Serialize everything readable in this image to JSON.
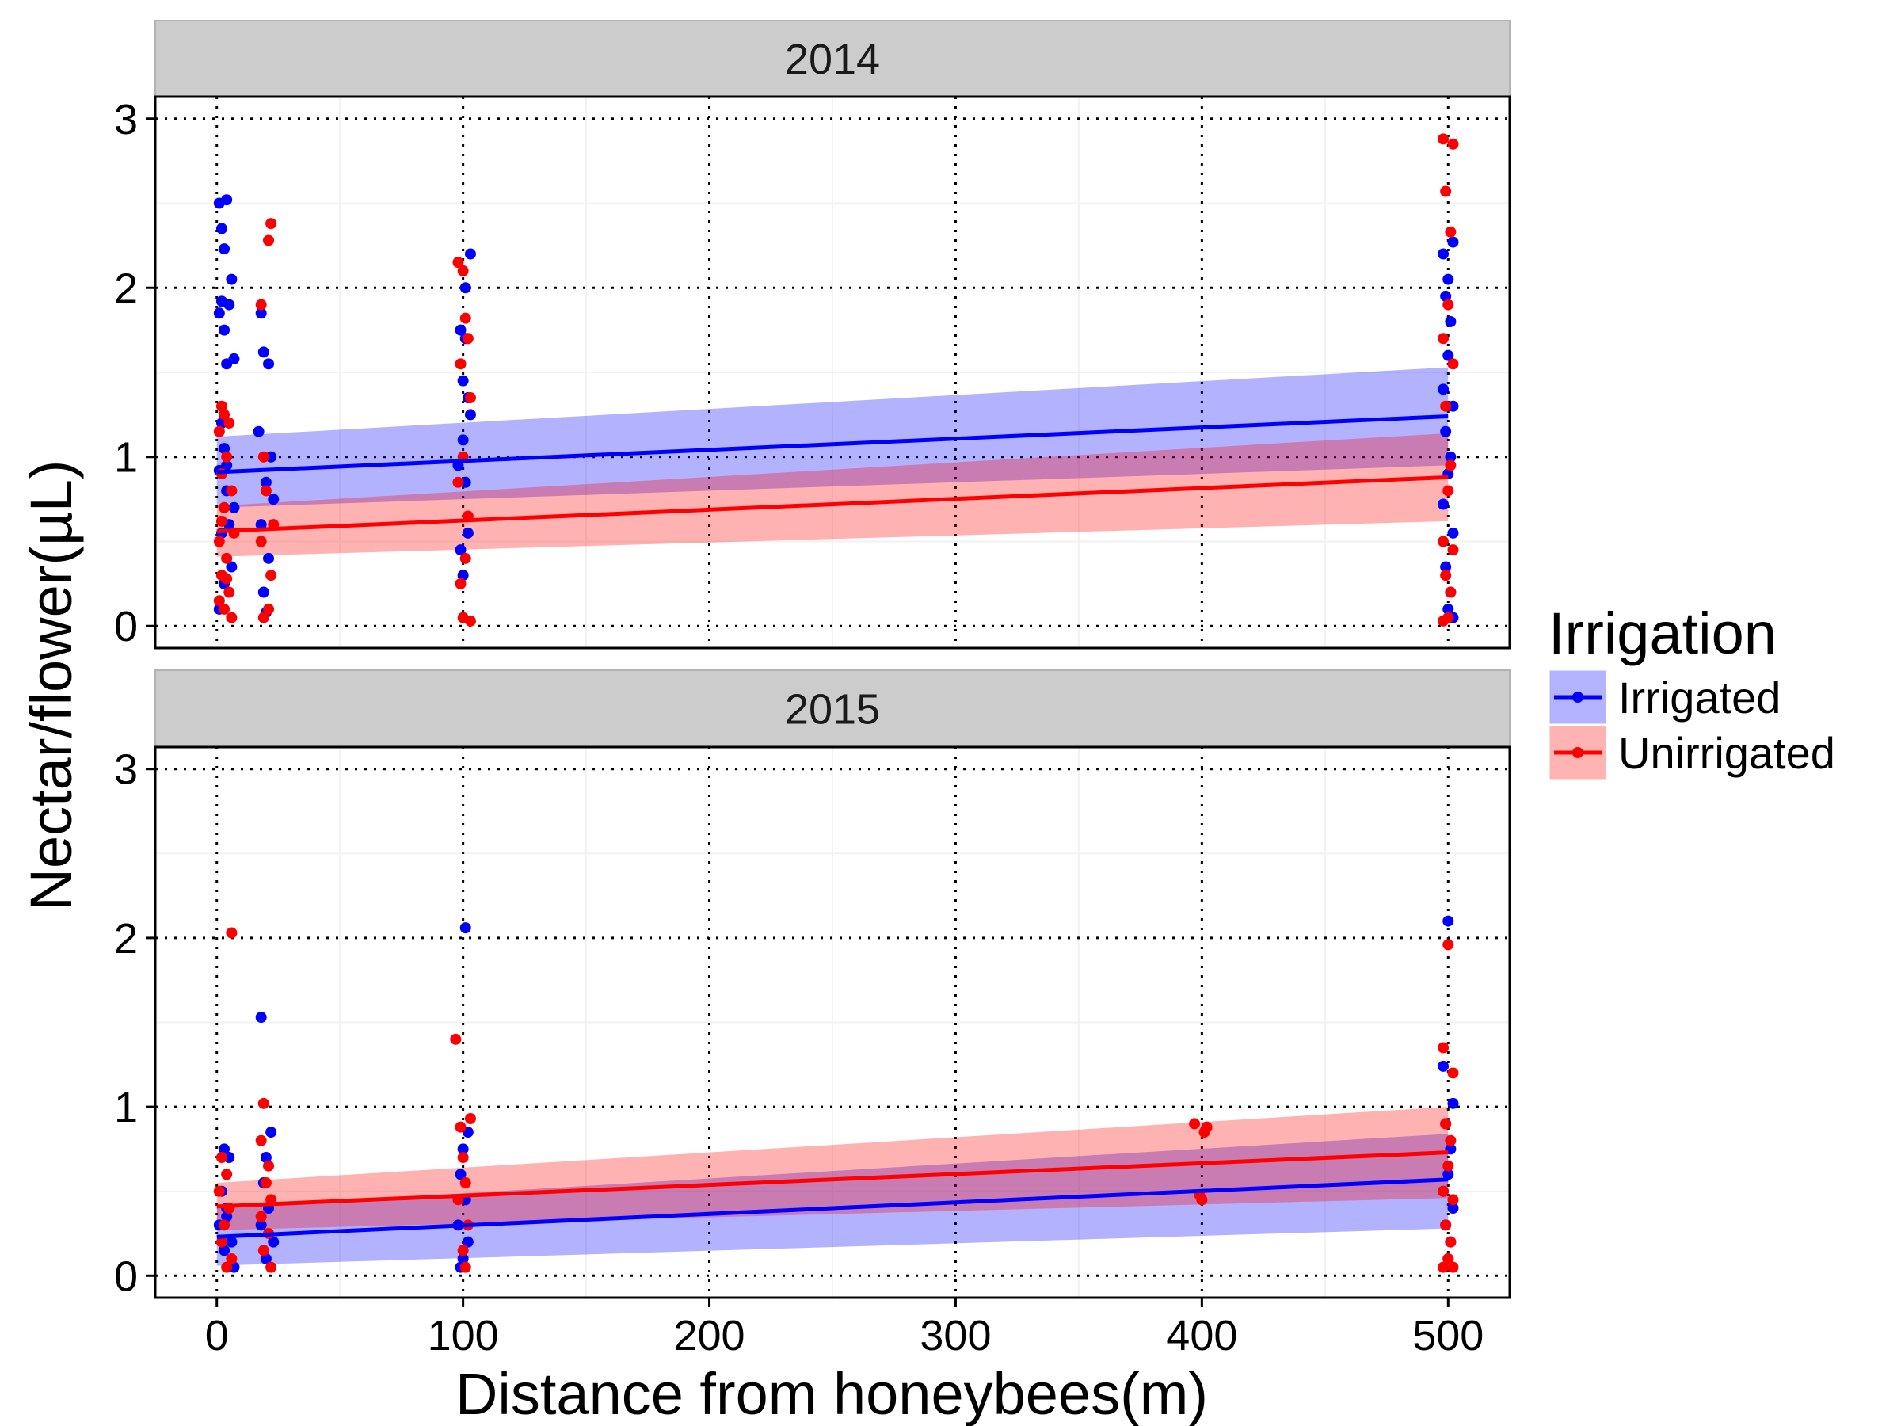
{
  "chart_data": {
    "type": "scatter",
    "facet_variable": "year",
    "xlabel": "Distance from honeybees(m)",
    "ylabel": "Nectar/flower(µL)",
    "xlim": [
      -25,
      525
    ],
    "ylim": [
      -0.13,
      3.13
    ],
    "x_ticks": [
      0,
      100,
      200,
      300,
      400,
      500
    ],
    "y_ticks": [
      0,
      1,
      2,
      3
    ],
    "grid": true,
    "legend": {
      "title": "Irrigation",
      "placement": "right",
      "entries": [
        {
          "label": "Irrigated",
          "color": "#0000ff",
          "fill": "#b3b3ff"
        },
        {
          "label": "Unirrigated",
          "color": "#ff0000",
          "fill": "#ffb3b3"
        }
      ]
    },
    "panels": [
      {
        "label": "2014",
        "series": [
          {
            "name": "Irrigated",
            "trend": {
              "x": [
                0,
                500
              ],
              "y": [
                0.91,
                1.24
              ],
              "ci_lower": [
                0.7,
                0.95
              ],
              "ci_upper": [
                1.12,
                1.53
              ]
            },
            "points": [
              [
                1,
                2.5
              ],
              [
                2,
                2.35
              ],
              [
                4,
                2.52
              ],
              [
                3,
                2.23
              ],
              [
                2,
                1.92
              ],
              [
                5,
                1.9
              ],
              [
                1,
                1.85
              ],
              [
                6,
                2.05
              ],
              [
                3,
                1.75
              ],
              [
                4,
                1.55
              ],
              [
                7,
                1.58
              ],
              [
                2,
                1.2
              ],
              [
                3,
                1.05
              ],
              [
                1,
                0.92
              ],
              [
                4,
                0.8
              ],
              [
                5,
                0.6
              ],
              [
                2,
                0.55
              ],
              [
                6,
                0.35
              ],
              [
                3,
                0.25
              ],
              [
                1,
                0.1
              ],
              [
                7,
                0.7
              ],
              [
                4,
                0.95
              ],
              [
                18,
                1.85
              ],
              [
                19,
                1.62
              ],
              [
                21,
                1.55
              ],
              [
                17,
                1.15
              ],
              [
                22,
                1.0
              ],
              [
                20,
                0.85
              ],
              [
                18,
                0.6
              ],
              [
                21,
                0.4
              ],
              [
                19,
                0.2
              ],
              [
                23,
                0.75
              ],
              [
                20,
                0.08
              ],
              [
                99,
                1.75
              ],
              [
                101,
                1.7
              ],
              [
                100,
                1.45
              ],
              [
                102,
                1.35
              ],
              [
                103,
                1.25
              ],
              [
                100,
                1.1
              ],
              [
                98,
                0.95
              ],
              [
                101,
                0.85
              ],
              [
                102,
                0.55
              ],
              [
                99,
                0.45
              ],
              [
                103,
                2.2
              ],
              [
                101,
                2.0
              ],
              [
                100,
                0.3
              ],
              [
                498,
                2.2
              ],
              [
                500,
                2.05
              ],
              [
                502,
                2.27
              ],
              [
                499,
                1.95
              ],
              [
                501,
                1.8
              ],
              [
                500,
                1.6
              ],
              [
                498,
                1.4
              ],
              [
                502,
                1.3
              ],
              [
                499,
                1.15
              ],
              [
                501,
                1.0
              ],
              [
                500,
                0.9
              ],
              [
                498,
                0.72
              ],
              [
                502,
                0.55
              ],
              [
                499,
                0.35
              ],
              [
                501,
                0.2
              ],
              [
                500,
                0.1
              ],
              [
                502,
                0.05
              ]
            ]
          },
          {
            "name": "Unirrigated",
            "trend": {
              "x": [
                0,
                500
              ],
              "y": [
                0.56,
                0.88
              ],
              "ci_lower": [
                0.41,
                0.62
              ],
              "ci_upper": [
                0.71,
                1.14
              ]
            },
            "points": [
              [
                2,
                1.3
              ],
              [
                3,
                1.25
              ],
              [
                1,
                1.15
              ],
              [
                5,
                1.2
              ],
              [
                4,
                1.0
              ],
              [
                2,
                0.9
              ],
              [
                6,
                0.8
              ],
              [
                3,
                0.7
              ],
              [
                1,
                0.5
              ],
              [
                4,
                0.4
              ],
              [
                2,
                0.3
              ],
              [
                5,
                0.2
              ],
              [
                3,
                0.1
              ],
              [
                6,
                0.05
              ],
              [
                1,
                0.15
              ],
              [
                7,
                0.55
              ],
              [
                2,
                0.62
              ],
              [
                4,
                0.28
              ],
              [
                18,
                1.9
              ],
              [
                21,
                2.28
              ],
              [
                22,
                2.38
              ],
              [
                19,
                1.0
              ],
              [
                20,
                0.8
              ],
              [
                18,
                0.5
              ],
              [
                22,
                0.3
              ],
              [
                21,
                0.1
              ],
              [
                19,
                0.05
              ],
              [
                23,
                0.6
              ],
              [
                98,
                2.15
              ],
              [
                100,
                2.1
              ],
              [
                101,
                1.82
              ],
              [
                102,
                1.7
              ],
              [
                99,
                1.55
              ],
              [
                103,
                1.35
              ],
              [
                100,
                1.0
              ],
              [
                98,
                0.85
              ],
              [
                102,
                0.65
              ],
              [
                101,
                0.4
              ],
              [
                99,
                0.25
              ],
              [
                100,
                0.05
              ],
              [
                103,
                0.03
              ],
              [
                498,
                2.88
              ],
              [
                502,
                2.85
              ],
              [
                499,
                2.57
              ],
              [
                501,
                2.33
              ],
              [
                500,
                1.9
              ],
              [
                498,
                1.7
              ],
              [
                502,
                1.55
              ],
              [
                499,
                1.3
              ],
              [
                501,
                0.95
              ],
              [
                500,
                0.8
              ],
              [
                498,
                0.5
              ],
              [
                502,
                0.45
              ],
              [
                499,
                0.3
              ],
              [
                501,
                0.2
              ],
              [
                500,
                0.05
              ],
              [
                498,
                0.03
              ]
            ]
          }
        ]
      },
      {
        "label": "2015",
        "series": [
          {
            "name": "Irrigated",
            "trend": {
              "x": [
                0,
                500
              ],
              "y": [
                0.23,
                0.57
              ],
              "ci_lower": [
                0.06,
                0.28
              ],
              "ci_upper": [
                0.4,
                0.84
              ]
            },
            "points": [
              [
                3,
                0.75
              ],
              [
                5,
                0.7
              ],
              [
                2,
                0.5
              ],
              [
                4,
                0.4
              ],
              [
                1,
                0.3
              ],
              [
                6,
                0.2
              ],
              [
                3,
                0.15
              ],
              [
                7,
                0.05
              ],
              [
                4,
                0.35
              ],
              [
                18,
                1.53
              ],
              [
                22,
                0.85
              ],
              [
                20,
                0.7
              ],
              [
                19,
                0.55
              ],
              [
                21,
                0.4
              ],
              [
                18,
                0.3
              ],
              [
                23,
                0.2
              ],
              [
                20,
                0.1
              ],
              [
                101,
                2.06
              ],
              [
                102,
                0.85
              ],
              [
                100,
                0.75
              ],
              [
                99,
                0.6
              ],
              [
                101,
                0.45
              ],
              [
                98,
                0.3
              ],
              [
                102,
                0.2
              ],
              [
                100,
                0.1
              ],
              [
                99,
                0.05
              ],
              [
                500,
                2.1
              ],
              [
                502,
                1.02
              ],
              [
                498,
                1.24
              ],
              [
                499,
                0.9
              ],
              [
                501,
                0.75
              ],
              [
                500,
                0.6
              ],
              [
                498,
                0.5
              ],
              [
                502,
                0.4
              ],
              [
                499,
                0.3
              ],
              [
                501,
                0.2
              ],
              [
                500,
                0.1
              ]
            ]
          },
          {
            "name": "Unirrigated",
            "trend": {
              "x": [
                0,
                500
              ],
              "y": [
                0.41,
                0.73
              ],
              "ci_lower": [
                0.27,
                0.46
              ],
              "ci_upper": [
                0.55,
                1.0
              ]
            },
            "points": [
              [
                6,
                2.03
              ],
              [
                2,
                0.7
              ],
              [
                4,
                0.6
              ],
              [
                1,
                0.5
              ],
              [
                5,
                0.4
              ],
              [
                3,
                0.3
              ],
              [
                2,
                0.2
              ],
              [
                6,
                0.1
              ],
              [
                4,
                0.05
              ],
              [
                19,
                1.02
              ],
              [
                18,
                0.8
              ],
              [
                21,
                0.65
              ],
              [
                20,
                0.55
              ],
              [
                22,
                0.45
              ],
              [
                18,
                0.35
              ],
              [
                21,
                0.25
              ],
              [
                19,
                0.15
              ],
              [
                22,
                0.05
              ],
              [
                97,
                1.4
              ],
              [
                99,
                0.88
              ],
              [
                103,
                0.93
              ],
              [
                100,
                0.7
              ],
              [
                101,
                0.55
              ],
              [
                98,
                0.45
              ],
              [
                102,
                0.3
              ],
              [
                100,
                0.15
              ],
              [
                101,
                0.05
              ],
              [
                397,
                0.9
              ],
              [
                402,
                0.88
              ],
              [
                401,
                0.85
              ],
              [
                399,
                0.48
              ],
              [
                400,
                0.45
              ],
              [
                500,
                1.96
              ],
              [
                498,
                1.35
              ],
              [
                502,
                1.2
              ],
              [
                499,
                0.9
              ],
              [
                501,
                0.8
              ],
              [
                500,
                0.65
              ],
              [
                498,
                0.5
              ],
              [
                502,
                0.45
              ],
              [
                499,
                0.3
              ],
              [
                501,
                0.2
              ],
              [
                500,
                0.1
              ],
              [
                498,
                0.05
              ],
              [
                502,
                0.05
              ]
            ]
          }
        ]
      }
    ]
  }
}
